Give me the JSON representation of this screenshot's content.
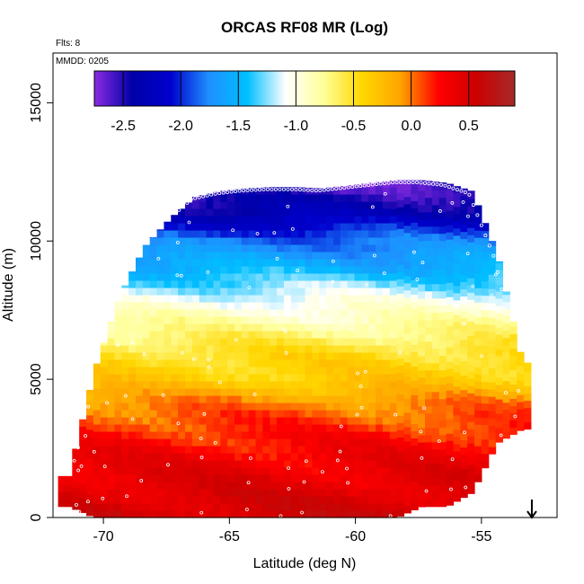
{
  "chart_data": {
    "type": "heatmap",
    "title": "ORCAS RF08 MR (Log)",
    "annotations": {
      "flights": "Flts: 8",
      "date": "MMDD: 0205"
    },
    "xlabel": "Latitude (deg N)",
    "ylabel": "Altitude (m)",
    "xlim": [
      -72,
      -52
    ],
    "ylim": [
      0,
      16800
    ],
    "x_ticks": [
      -70,
      -65,
      -60,
      -55
    ],
    "x_tick_labels": [
      "-70",
      "-65",
      "-60",
      "-55"
    ],
    "y_ticks": [
      0,
      5000,
      10000,
      15000
    ],
    "y_tick_labels": [
      "0",
      "5000",
      "10000",
      "15000"
    ],
    "colorbar": {
      "range": [
        -2.75,
        0.9
      ],
      "ticks": [
        -2.5,
        -2.0,
        -1.5,
        -1.0,
        -0.5,
        0.0,
        0.5
      ],
      "tick_labels": [
        "-2.5",
        "-2.0",
        "-1.5",
        "-1.0",
        "-0.5",
        "0.0",
        "0.5"
      ],
      "colors": [
        "#8a2be2",
        "#0000a8",
        "#0000cd",
        "#1e90ff",
        "#00bfff",
        "#ffffff",
        "#ffff99",
        "#ffd700",
        "#ffa500",
        "#ff0000",
        "#cd0000",
        "#a52a2a"
      ]
    },
    "arrow_marker_x": -53,
    "profile": {
      "lat": [
        -71.5,
        -70.5,
        -69.5,
        -68.5,
        -67.5,
        -66.5,
        -65.5,
        -64.5,
        -63.5,
        -62.5,
        -61.5,
        -60.5,
        -59.5,
        -58.5,
        -57.5,
        -56.5,
        -55.5,
        -54.5,
        -53.5
      ],
      "max_alt": [
        1500,
        5300,
        8000,
        9800,
        10800,
        11600,
        11800,
        11900,
        11950,
        11950,
        11900,
        12000,
        12100,
        12200,
        12200,
        12100,
        11800,
        9500,
        5600
      ],
      "min_alt": [
        400,
        0,
        0,
        0,
        0,
        0,
        0,
        0,
        0,
        0,
        0,
        0,
        0,
        0,
        400,
        400,
        900,
        2700,
        3200
      ]
    },
    "field": {
      "alt": [
        0,
        1000,
        2000,
        3000,
        4000,
        5000,
        6000,
        7000,
        8000,
        9000,
        10000,
        11000,
        12000
      ],
      "value": [
        0.55,
        0.45,
        0.35,
        0.2,
        0.0,
        -0.35,
        -0.5,
        -0.8,
        -1.1,
        -1.5,
        -1.8,
        -2.3,
        -2.6
      ]
    }
  }
}
